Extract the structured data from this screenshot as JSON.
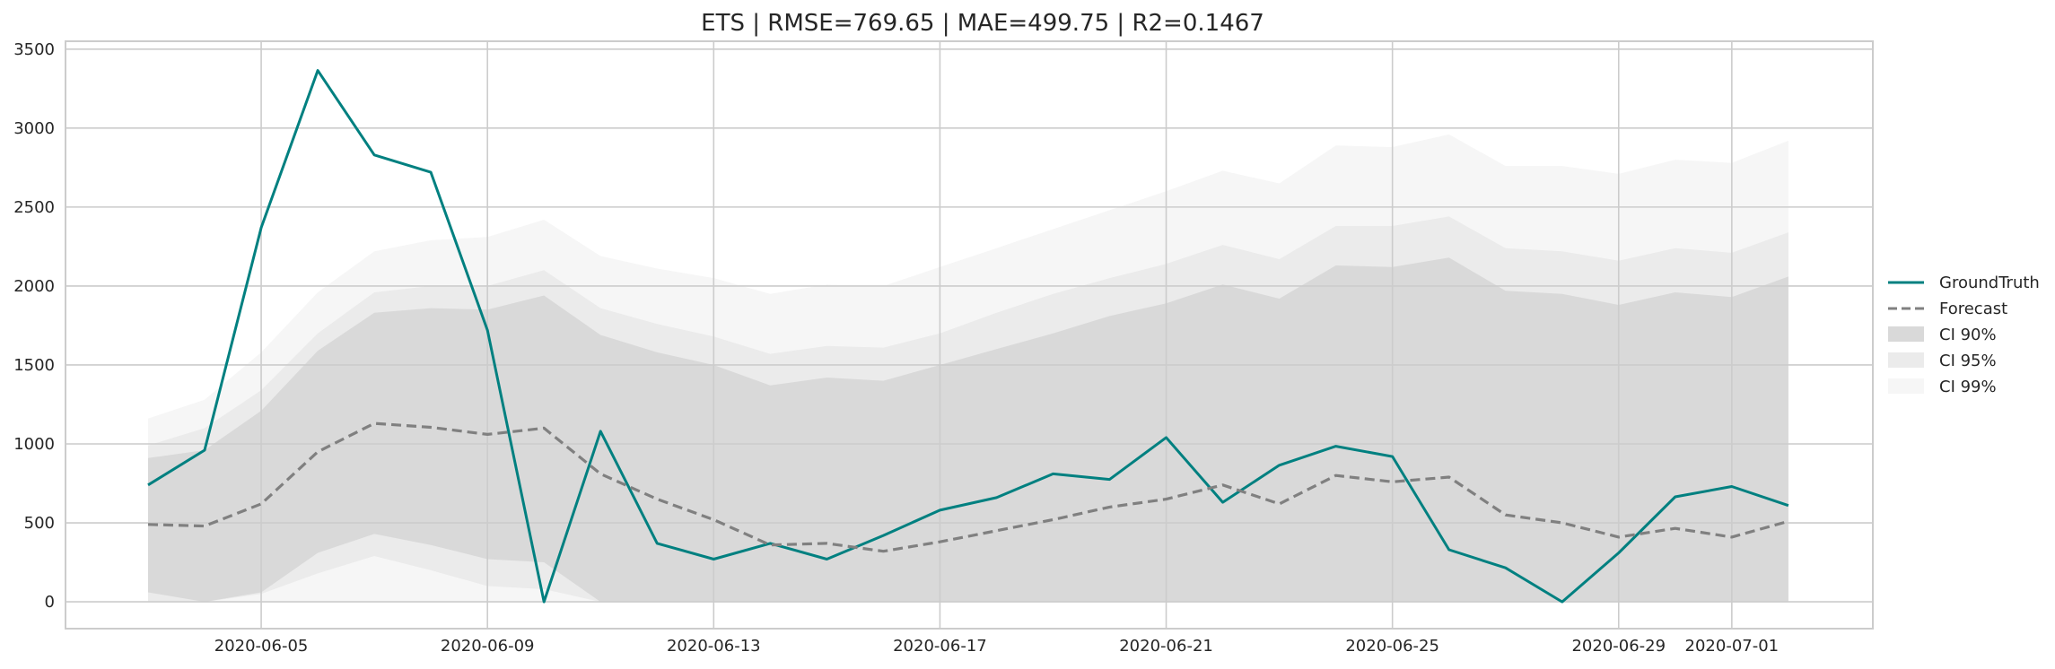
{
  "chart_data": {
    "type": "line",
    "title": "ETS | RMSE=769.65 | MAE=499.75 | R2=0.1467",
    "xlabel": "",
    "ylabel": "",
    "x": [
      "2020-06-03",
      "2020-06-04",
      "2020-06-05",
      "2020-06-06",
      "2020-06-07",
      "2020-06-08",
      "2020-06-09",
      "2020-06-10",
      "2020-06-11",
      "2020-06-12",
      "2020-06-13",
      "2020-06-14",
      "2020-06-15",
      "2020-06-16",
      "2020-06-17",
      "2020-06-18",
      "2020-06-19",
      "2020-06-20",
      "2020-06-21",
      "2020-06-22",
      "2020-06-23",
      "2020-06-24",
      "2020-06-25",
      "2020-06-26",
      "2020-06-27",
      "2020-06-28",
      "2020-06-29",
      "2020-06-30",
      "2020-07-01",
      "2020-07-02"
    ],
    "x_ticks": [
      "2020-06-05",
      "2020-06-09",
      "2020-06-13",
      "2020-06-17",
      "2020-06-21",
      "2020-06-25",
      "2020-06-29",
      "2020-07-01"
    ],
    "ylim": [
      -170,
      3550
    ],
    "y_ticks": [
      0,
      500,
      1000,
      1500,
      2000,
      2500,
      3000,
      3500
    ],
    "grid": true,
    "legend_position": "right",
    "series": [
      {
        "name": "GroundTruth",
        "color": "#008080",
        "style": "solid",
        "values": [
          740,
          960,
          2370,
          3365,
          2830,
          2720,
          1720,
          0,
          1080,
          370,
          270,
          370,
          270,
          420,
          580,
          660,
          810,
          775,
          1040,
          630,
          865,
          985,
          920,
          330,
          215,
          0,
          310,
          665,
          730,
          610
        ]
      },
      {
        "name": "Forecast",
        "color": "#808080",
        "style": "dashed",
        "values": [
          490,
          480,
          620,
          950,
          1130,
          1105,
          1060,
          1100,
          810,
          650,
          520,
          360,
          370,
          320,
          380,
          450,
          520,
          600,
          650,
          740,
          620,
          800,
          760,
          790,
          550,
          500,
          410,
          465,
          410,
          510
        ]
      }
    ],
    "bands": [
      {
        "name": "CI 99%",
        "color": "#f6f6f6",
        "lower": [
          -200,
          -300,
          -150,
          -50,
          0,
          -50,
          -100,
          -150,
          -350,
          -450,
          -550,
          -700,
          -650,
          -700,
          -750,
          -800,
          -850,
          -900,
          -950,
          -1000,
          -1050,
          -1100,
          -1150,
          -1200,
          -1250,
          -1300,
          -1350,
          -1400,
          -1450,
          -1500
        ],
        "upper": [
          1160,
          1280,
          1580,
          1960,
          2220,
          2290,
          2310,
          2420,
          2190,
          2110,
          2050,
          1950,
          2010,
          2000,
          2120,
          2240,
          2360,
          2480,
          2600,
          2730,
          2650,
          2890,
          2880,
          2960,
          2760,
          2760,
          2710,
          2800,
          2780,
          2920
        ]
      },
      {
        "name": "CI 95%",
        "color": "#ebebeb",
        "lower": [
          0,
          -80,
          50,
          180,
          290,
          200,
          100,
          80,
          -120,
          -200,
          -300,
          -420,
          -380,
          -430,
          -480,
          -520,
          -560,
          -600,
          -640,
          -680,
          -720,
          -760,
          -800,
          -840,
          -880,
          -920,
          -960,
          -1000,
          -1040,
          -1080
        ],
        "upper": [
          990,
          1100,
          1340,
          1700,
          1960,
          2000,
          2000,
          2100,
          1860,
          1760,
          1680,
          1570,
          1620,
          1610,
          1700,
          1830,
          1950,
          2050,
          2140,
          2260,
          2170,
          2380,
          2380,
          2440,
          2240,
          2220,
          2160,
          2240,
          2210,
          2340
        ]
      },
      {
        "name": "CI 90%",
        "color": "#d9d9d9",
        "lower": [
          60,
          0,
          60,
          310,
          430,
          360,
          270,
          250,
          0,
          -80,
          -160,
          -280,
          -240,
          -280,
          -320,
          -360,
          -400,
          -440,
          -480,
          -520,
          -560,
          -600,
          -640,
          -680,
          -720,
          -760,
          -800,
          -840,
          -880,
          -920
        ],
        "upper": [
          910,
          960,
          1210,
          1590,
          1830,
          1860,
          1850,
          1940,
          1690,
          1580,
          1500,
          1370,
          1420,
          1400,
          1500,
          1600,
          1700,
          1810,
          1890,
          2010,
          1920,
          2130,
          2120,
          2180,
          1970,
          1950,
          1880,
          1960,
          1930,
          2060
        ]
      }
    ],
    "legend": [
      {
        "label": "GroundTruth",
        "kind": "line",
        "color": "#008080"
      },
      {
        "label": "Forecast",
        "kind": "dashed",
        "color": "#808080"
      },
      {
        "label": "CI 90%",
        "kind": "patch",
        "color": "#d9d9d9"
      },
      {
        "label": "CI 95%",
        "kind": "patch",
        "color": "#ebebeb"
      },
      {
        "label": "CI 99%",
        "kind": "patch",
        "color": "#f6f6f6"
      }
    ]
  }
}
